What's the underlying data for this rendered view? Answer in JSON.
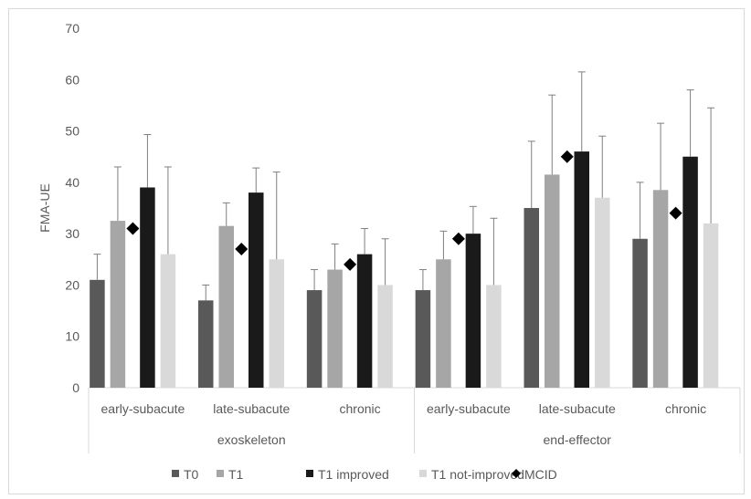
{
  "chart_data": {
    "type": "bar",
    "ylabel": "FMA-UE",
    "ylim": [
      0,
      70
    ],
    "yticks": [
      "0",
      "10",
      "20",
      "30",
      "40",
      "50",
      "60",
      "70"
    ],
    "groups": [
      {
        "name": "exoskeleton",
        "categories": [
          "early-subacute",
          "late-subacute",
          "chronic"
        ]
      },
      {
        "name": "end-effector",
        "categories": [
          "early-subacute",
          "late-subacute",
          "chronic"
        ]
      }
    ],
    "series": [
      {
        "name": "T0",
        "color": "#595959",
        "values": [
          21,
          17,
          19,
          19,
          35,
          29
        ],
        "errors": [
          5,
          3,
          4,
          4,
          13,
          11
        ]
      },
      {
        "name": "T1",
        "color": "#a6a6a6",
        "values": [
          32.5,
          31.5,
          23,
          25,
          41.5,
          38.5
        ],
        "errors": [
          10.5,
          4.5,
          5,
          5.5,
          15.5,
          13
        ]
      },
      {
        "name": "T1 improved",
        "color": "#1a1a1a",
        "values": [
          39,
          38,
          26,
          30,
          46,
          45
        ],
        "errors": [
          10.3,
          4.8,
          5,
          5.3,
          15.5,
          13
        ]
      },
      {
        "name": "T1 not-improved",
        "color": "#d9d9d9",
        "values": [
          26,
          25,
          20,
          20,
          37,
          32
        ],
        "errors": [
          17,
          17,
          9,
          13,
          12,
          22.5
        ]
      }
    ],
    "markers": {
      "name": "MCID",
      "color": "#000000",
      "values": [
        31,
        27,
        24,
        29,
        45,
        34
      ]
    },
    "grid": false,
    "legend": "bottom"
  }
}
